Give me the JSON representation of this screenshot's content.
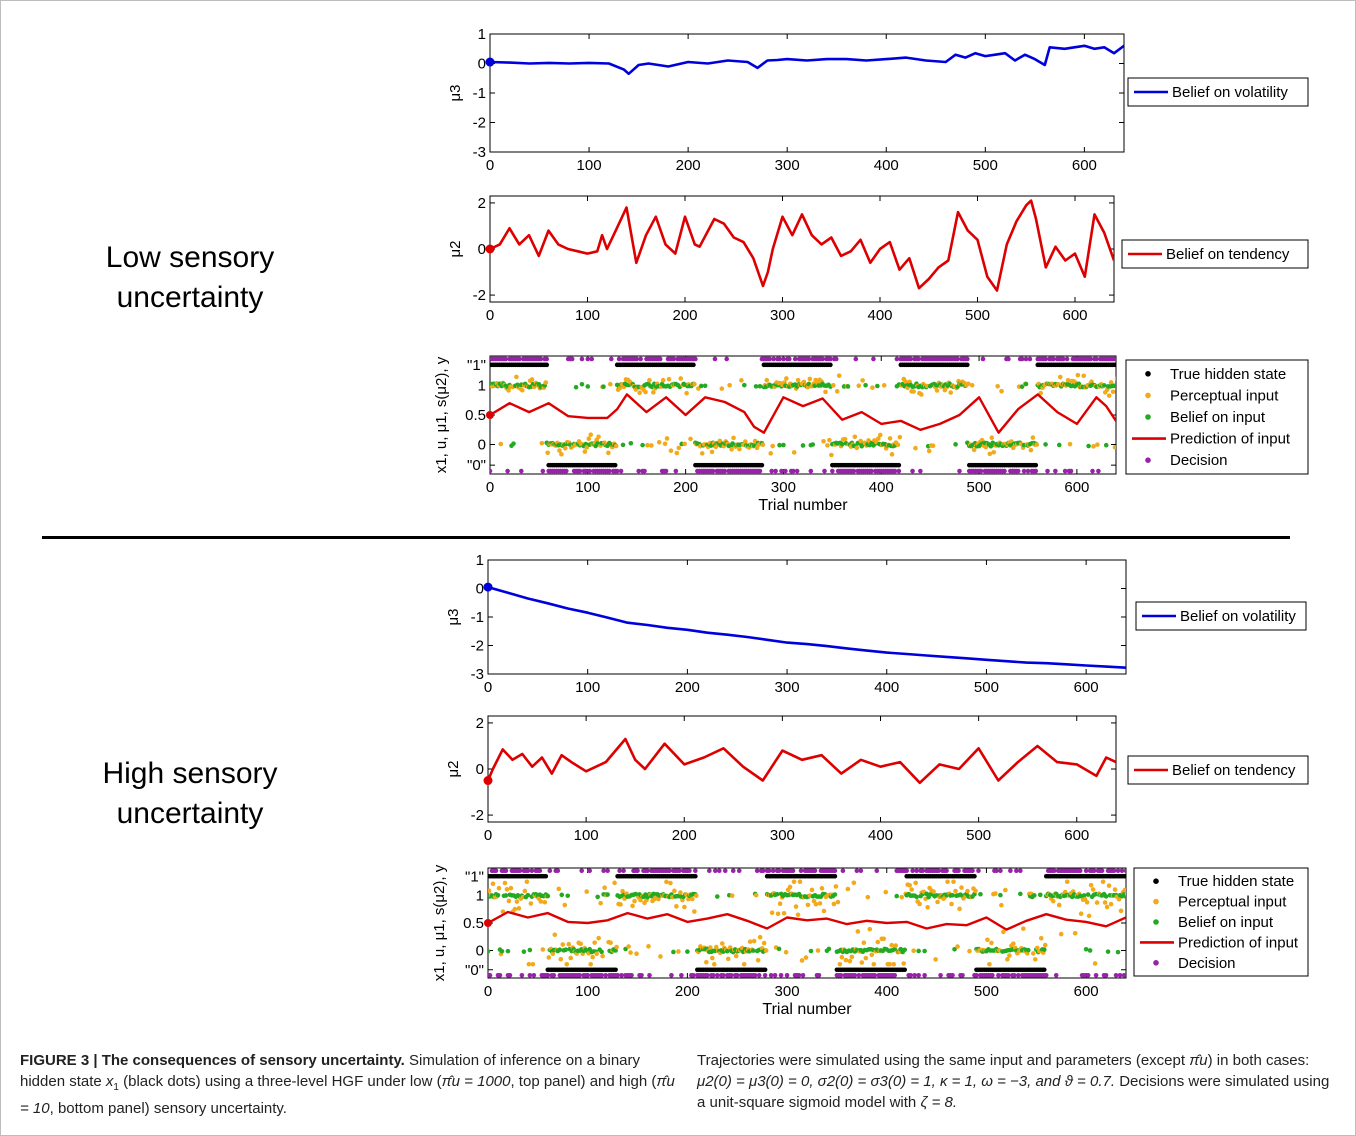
{
  "panels": [
    {
      "label_line1": "Low sensory",
      "label_line2": "uncertainty"
    },
    {
      "label_line1": "High sensory",
      "label_line2": "uncertainty"
    }
  ],
  "caption": {
    "figure_label": "FIGURE 3 | The consequences of sensory uncertainty.",
    "left_text_1": "Simulation of inference on a binary hidden state",
    "left_var": "x",
    "left_var_sub": "1",
    "left_text_2": "(black dots) using a three-level HGF under low (",
    "left_low_param": "π̂u = 1000",
    "left_text_3": ", top panel) and high (",
    "left_high_param": "π̂u = 10",
    "left_text_4": ", bottom panel) sensory uncertainty.",
    "right_text_1": "Trajectories were simulated using the same input and parameters (except",
    "right_param_except": "π̂u",
    "right_text_2": ") in both cases:",
    "right_params": "μ2(0) = μ3(0) = 0, σ2(0) = σ3(0) = 1, κ = 1, ω = −3, and ϑ = 0.7.",
    "right_text_3": "Decisions were simulated using a unit-square sigmoid model with",
    "right_zeta": "ζ = 8."
  },
  "chart_data": [
    {
      "type": "line",
      "panel": "low",
      "ylabel": "μ3",
      "xlabel": "",
      "xlim": [
        0,
        640
      ],
      "ylim": [
        -3,
        1
      ],
      "xticks": [
        "0",
        "100",
        "200",
        "300",
        "400",
        "500",
        "600"
      ],
      "yticks": [
        "1",
        "0",
        "-1",
        "-2",
        "-3"
      ],
      "legend": [
        {
          "label": "Belief on volatility",
          "color": "#0000dd",
          "kind": "line"
        }
      ],
      "series": [
        {
          "name": "Belief on volatility",
          "color": "#0000dd",
          "x": [
            0,
            20,
            40,
            60,
            80,
            100,
            120,
            135,
            140,
            150,
            160,
            180,
            200,
            220,
            240,
            260,
            270,
            280,
            290,
            300,
            320,
            340,
            360,
            380,
            400,
            420,
            440,
            460,
            470,
            480,
            490,
            500,
            510,
            520,
            530,
            540,
            550,
            560,
            565,
            580,
            600,
            610,
            620,
            630,
            640
          ],
          "y": [
            0.05,
            0.03,
            0.0,
            0.02,
            0.0,
            0.02,
            0.0,
            -0.2,
            -0.35,
            -0.05,
            0.0,
            -0.1,
            0.05,
            0.0,
            0.1,
            0.05,
            -0.15,
            0.1,
            0.12,
            0.15,
            0.1,
            0.15,
            0.15,
            0.1,
            0.15,
            0.2,
            0.1,
            0.05,
            0.3,
            0.2,
            0.35,
            0.25,
            0.3,
            0.35,
            0.1,
            0.3,
            0.15,
            -0.05,
            0.55,
            0.5,
            0.6,
            0.5,
            0.55,
            0.35,
            0.6
          ]
        }
      ]
    },
    {
      "type": "line",
      "panel": "low",
      "ylabel": "μ2",
      "xlabel": "",
      "xlim": [
        0,
        640
      ],
      "ylim": [
        -2.3,
        2.3
      ],
      "xticks": [
        "0",
        "100",
        "200",
        "300",
        "400",
        "500",
        "600"
      ],
      "yticks": [
        "2",
        "0",
        "-2"
      ],
      "legend": [
        {
          "label": "Belief on tendency",
          "color": "#dd0000",
          "kind": "line"
        }
      ],
      "series": [
        {
          "name": "Belief on tendency",
          "color": "#dd0000",
          "x": [
            0,
            10,
            20,
            30,
            40,
            50,
            60,
            70,
            80,
            90,
            100,
            110,
            115,
            120,
            130,
            140,
            150,
            160,
            170,
            180,
            190,
            200,
            210,
            215,
            230,
            240,
            250,
            260,
            270,
            280,
            285,
            290,
            300,
            310,
            320,
            330,
            340,
            350,
            360,
            370,
            380,
            390,
            400,
            410,
            420,
            430,
            440,
            450,
            460,
            470,
            480,
            490,
            500,
            510,
            520,
            530,
            540,
            550,
            555,
            560,
            570,
            580,
            590,
            600,
            610,
            620,
            630,
            640
          ],
          "y": [
            0,
            0.2,
            0.9,
            0.2,
            0.6,
            -0.3,
            0.8,
            0.2,
            0.0,
            -0.1,
            -0.2,
            -0.1,
            0.6,
            0.0,
            0.9,
            1.8,
            -0.6,
            0.6,
            1.4,
            0.2,
            -0.2,
            1.4,
            0.2,
            0.1,
            1.3,
            1.1,
            0.5,
            0.3,
            -0.4,
            -1.6,
            -1.0,
            0.0,
            1.4,
            0.6,
            1.5,
            0.6,
            0.2,
            0.5,
            -0.3,
            -0.1,
            0.4,
            -0.6,
            0.0,
            0.3,
            -0.9,
            -0.4,
            -1.7,
            -1.3,
            -0.8,
            -0.5,
            1.6,
            0.8,
            0.4,
            -1.2,
            -1.8,
            0.2,
            1.2,
            1.9,
            2.1,
            1.3,
            -0.8,
            0.1,
            -0.5,
            -0.2,
            -1.2,
            1.5,
            0.7,
            -0.5
          ]
        }
      ]
    },
    {
      "type": "scatter",
      "panel": "low",
      "ylabel": "x1, u, μ1, s(μ2), y",
      "xlabel": "Trial number",
      "xlim": [
        0,
        640
      ],
      "ylim": [
        -0.5,
        1.5
      ],
      "xticks": [
        "0",
        "100",
        "200",
        "300",
        "400",
        "500",
        "600"
      ],
      "yticks": [
        "\"1\"",
        "1",
        "0.5",
        "0",
        "\"0\""
      ],
      "legend": [
        {
          "label": "True hidden state",
          "color": "#000000",
          "kind": "dot"
        },
        {
          "label": "Perceptual input",
          "color": "#f2a91a",
          "kind": "dot"
        },
        {
          "label": "Belief on input",
          "color": "#22aa22",
          "kind": "dot"
        },
        {
          "label": "Prediction of input",
          "color": "#dd0000",
          "kind": "line"
        },
        {
          "label": "Decision",
          "color": "#9922aa",
          "kind": "dot"
        }
      ],
      "hidden_state_segments": [
        {
          "from": 0,
          "to": 60,
          "state": 1
        },
        {
          "from": 60,
          "to": 130,
          "state": 0
        },
        {
          "from": 130,
          "to": 210,
          "state": 1
        },
        {
          "from": 210,
          "to": 280,
          "state": 0
        },
        {
          "from": 280,
          "to": 350,
          "state": 1
        },
        {
          "from": 350,
          "to": 420,
          "state": 0
        },
        {
          "from": 420,
          "to": 490,
          "state": 1
        },
        {
          "from": 490,
          "to": 560,
          "state": 0
        },
        {
          "from": 560,
          "to": 640,
          "state": 1
        }
      ],
      "input_noise": 0.12,
      "decision_flip_rate": 0.18,
      "prediction": {
        "x": [
          0,
          20,
          40,
          60,
          80,
          100,
          120,
          130,
          140,
          160,
          180,
          200,
          220,
          240,
          260,
          270,
          280,
          300,
          320,
          340,
          360,
          380,
          400,
          420,
          440,
          460,
          480,
          500,
          520,
          540,
          560,
          580,
          600,
          620,
          630,
          640
        ],
        "y": [
          0.5,
          0.7,
          0.55,
          0.7,
          0.48,
          0.45,
          0.45,
          0.6,
          0.85,
          0.55,
          0.8,
          0.5,
          0.8,
          0.72,
          0.55,
          0.3,
          0.2,
          0.8,
          0.65,
          0.78,
          0.42,
          0.55,
          0.35,
          0.4,
          0.25,
          0.35,
          0.5,
          0.8,
          0.2,
          0.6,
          0.85,
          0.55,
          0.35,
          0.8,
          0.65,
          0.4
        ]
      }
    },
    {
      "type": "line",
      "panel": "high",
      "ylabel": "μ3",
      "xlabel": "",
      "xlim": [
        0,
        640
      ],
      "ylim": [
        -3,
        1
      ],
      "xticks": [
        "0",
        "100",
        "200",
        "300",
        "400",
        "500",
        "600"
      ],
      "yticks": [
        "1",
        "0",
        "-1",
        "-2",
        "-3"
      ],
      "legend": [
        {
          "label": "Belief on volatility",
          "color": "#0000dd",
          "kind": "line"
        }
      ],
      "series": [
        {
          "name": "Belief on volatility",
          "color": "#0000dd",
          "x": [
            0,
            20,
            40,
            60,
            80,
            100,
            120,
            140,
            160,
            180,
            200,
            220,
            240,
            260,
            280,
            300,
            320,
            340,
            360,
            380,
            400,
            420,
            440,
            460,
            480,
            500,
            520,
            540,
            560,
            580,
            600,
            620,
            640
          ],
          "y": [
            0.05,
            -0.15,
            -0.35,
            -0.52,
            -0.7,
            -0.85,
            -1.02,
            -1.2,
            -1.28,
            -1.38,
            -1.45,
            -1.55,
            -1.62,
            -1.7,
            -1.8,
            -1.9,
            -1.95,
            -2.02,
            -2.1,
            -2.18,
            -2.25,
            -2.3,
            -2.35,
            -2.4,
            -2.45,
            -2.5,
            -2.55,
            -2.6,
            -2.62,
            -2.66,
            -2.7,
            -2.74,
            -2.78
          ]
        }
      ]
    },
    {
      "type": "line",
      "panel": "high",
      "ylabel": "μ2",
      "xlabel": "",
      "xlim": [
        0,
        640
      ],
      "ylim": [
        -2.3,
        2.3
      ],
      "xticks": [
        "0",
        "100",
        "200",
        "300",
        "400",
        "500",
        "600"
      ],
      "yticks": [
        "2",
        "0",
        "-2"
      ],
      "legend": [
        {
          "label": "Belief on tendency",
          "color": "#dd0000",
          "kind": "line"
        }
      ],
      "series": [
        {
          "name": "Belief on tendency",
          "color": "#dd0000",
          "x": [
            0,
            5,
            15,
            25,
            35,
            45,
            55,
            65,
            75,
            85,
            100,
            120,
            140,
            150,
            160,
            180,
            200,
            220,
            240,
            260,
            280,
            300,
            320,
            340,
            360,
            380,
            400,
            420,
            440,
            460,
            480,
            500,
            520,
            540,
            560,
            580,
            600,
            620,
            630,
            640
          ],
          "y": [
            -0.5,
            0.0,
            0.85,
            0.4,
            0.65,
            0.1,
            0.5,
            -0.2,
            0.6,
            0.3,
            -0.1,
            0.3,
            1.3,
            0.4,
            0.0,
            1.1,
            0.2,
            0.5,
            0.9,
            0.1,
            -0.5,
            0.8,
            0.4,
            0.6,
            -0.2,
            0.4,
            0.1,
            0.3,
            -0.6,
            0.2,
            0.0,
            0.9,
            -0.5,
            0.3,
            1.0,
            0.3,
            0.2,
            -0.3,
            0.5,
            0.3
          ]
        }
      ]
    },
    {
      "type": "scatter",
      "panel": "high",
      "ylabel": "x1, u, μ1, s(μ2), y",
      "xlabel": "Trial number",
      "xlim": [
        0,
        640
      ],
      "ylim": [
        -0.5,
        1.5
      ],
      "xticks": [
        "0",
        "100",
        "200",
        "300",
        "400",
        "500",
        "600"
      ],
      "yticks": [
        "\"1\"",
        "1",
        "0.5",
        "0",
        "\"0\""
      ],
      "legend": [
        {
          "label": "True hidden state",
          "color": "#000000",
          "kind": "dot"
        },
        {
          "label": "Perceptual input",
          "color": "#f2a91a",
          "kind": "dot"
        },
        {
          "label": "Belief on input",
          "color": "#22aa22",
          "kind": "dot"
        },
        {
          "label": "Prediction of input",
          "color": "#dd0000",
          "kind": "line"
        },
        {
          "label": "Decision",
          "color": "#9922aa",
          "kind": "dot"
        }
      ],
      "hidden_state_segments": [
        {
          "from": 0,
          "to": 60,
          "state": 1
        },
        {
          "from": 60,
          "to": 130,
          "state": 0
        },
        {
          "from": 130,
          "to": 210,
          "state": 1
        },
        {
          "from": 210,
          "to": 280,
          "state": 0
        },
        {
          "from": 280,
          "to": 350,
          "state": 1
        },
        {
          "from": 350,
          "to": 420,
          "state": 0
        },
        {
          "from": 420,
          "to": 490,
          "state": 1
        },
        {
          "from": 490,
          "to": 560,
          "state": 0
        },
        {
          "from": 560,
          "to": 640,
          "state": 1
        }
      ],
      "input_noise": 0.28,
      "decision_flip_rate": 0.3,
      "prediction": {
        "x": [
          0,
          20,
          40,
          60,
          80,
          100,
          120,
          140,
          160,
          180,
          200,
          220,
          240,
          260,
          280,
          300,
          320,
          340,
          360,
          380,
          400,
          420,
          440,
          460,
          480,
          500,
          520,
          540,
          560,
          580,
          600,
          620,
          640
        ],
        "y": [
          0.5,
          0.7,
          0.6,
          0.68,
          0.52,
          0.5,
          0.55,
          0.68,
          0.58,
          0.66,
          0.52,
          0.58,
          0.66,
          0.54,
          0.4,
          0.6,
          0.55,
          0.58,
          0.48,
          0.54,
          0.5,
          0.52,
          0.4,
          0.48,
          0.46,
          0.6,
          0.38,
          0.54,
          0.66,
          0.56,
          0.52,
          0.44,
          0.6
        ]
      }
    }
  ]
}
